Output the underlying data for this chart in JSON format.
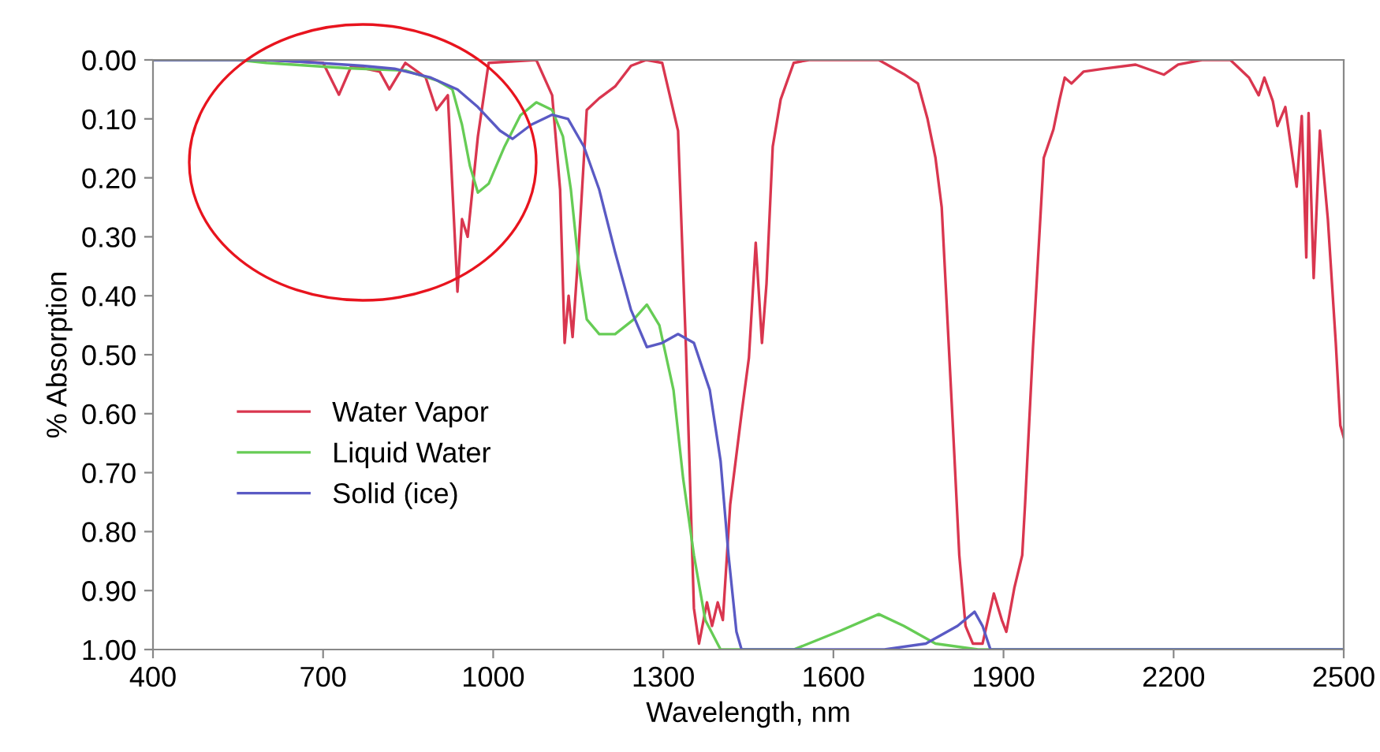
{
  "chart_data": {
    "type": "line",
    "xlabel": "Wavelength, nm",
    "ylabel": "% Absorption",
    "xlim": [
      400,
      2500
    ],
    "ylim": [
      1.0,
      0.0
    ],
    "xticks": [
      400,
      700,
      1000,
      1300,
      1600,
      1900,
      2200,
      2500
    ],
    "yticks": [
      {
        "value": 0,
        "label": "0.00"
      },
      {
        "value": 0.1,
        "label": "0.10"
      },
      {
        "value": 0.2,
        "label": "0.20"
      },
      {
        "value": 0.3,
        "label": "0.30"
      },
      {
        "value": 0.4,
        "label": "0.40"
      },
      {
        "value": 0.5,
        "label": "0.50"
      },
      {
        "value": 0.6,
        "label": "0.60"
      },
      {
        "value": 0.7,
        "label": "0.70"
      },
      {
        "value": 0.8,
        "label": "0.80"
      },
      {
        "value": 0.9,
        "label": "0.90"
      },
      {
        "value": 1.0,
        "label": "1.00"
      }
    ],
    "grid": false,
    "legend": "left",
    "marker": "none",
    "line_style": "solid",
    "series": [
      {
        "name": "Water Vapor",
        "color": "#d9364f",
        "x": [
          400,
          600,
          700,
          728,
          750,
          800,
          817,
          845,
          881,
          900,
          920,
          937,
          945,
          955,
          973,
          992,
          1076,
          1104,
          1118,
          1126,
          1133,
          1140,
          1150,
          1165,
          1187,
          1215,
          1243,
          1270,
          1298,
          1326,
          1340,
          1354,
          1363,
          1377,
          1386,
          1396,
          1405,
          1418,
          1438,
          1451,
          1463,
          1474,
          1482,
          1493,
          1507,
          1530,
          1557,
          1680,
          1724,
          1749,
          1766,
          1780,
          1791,
          1799,
          1813,
          1822,
          1833,
          1846,
          1863,
          1883,
          1897,
          1905,
          1919,
          1933,
          1938,
          1952,
          1971,
          1988,
          1999,
          2008,
          2020,
          2041,
          2077,
          2133,
          2183,
          2208,
          2250,
          2300,
          2333,
          2350,
          2360,
          2375,
          2383,
          2397,
          2417,
          2426,
          2434,
          2438,
          2447,
          2458,
          2472,
          2486,
          2494,
          2500
        ],
        "values": [
          0,
          0,
          0.005,
          0.059,
          0.01,
          0.02,
          0.05,
          0.005,
          0.03,
          0.085,
          0.06,
          0.393,
          0.27,
          0.3,
          0.13,
          0.005,
          0,
          0.06,
          0.22,
          0.48,
          0.4,
          0.47,
          0.33,
          0.085,
          0.065,
          0.045,
          0.01,
          0,
          0.005,
          0.12,
          0.49,
          0.93,
          0.99,
          0.92,
          0.96,
          0.92,
          0.95,
          0.754,
          0.6,
          0.505,
          0.31,
          0.48,
          0.38,
          0.147,
          0.067,
          0.005,
          0,
          0,
          0.024,
          0.04,
          0.1,
          0.166,
          0.25,
          0.4,
          0.665,
          0.84,
          0.96,
          0.99,
          0.99,
          0.905,
          0.95,
          0.97,
          0.896,
          0.84,
          0.754,
          0.487,
          0.166,
          0.118,
          0.067,
          0.03,
          0.04,
          0.02,
          0.015,
          0.008,
          0.025,
          0.008,
          0,
          0,
          0.03,
          0.06,
          0.03,
          0.07,
          0.112,
          0.08,
          0.215,
          0.095,
          0.335,
          0.09,
          0.37,
          0.12,
          0.27,
          0.48,
          0.62,
          0.64
        ]
      },
      {
        "name": "Liquid Water",
        "color": "#66cc55",
        "x": [
          400,
          550,
          600,
          742,
          845,
          901,
          928,
          945,
          959,
          973,
          992,
          1020,
          1048,
          1076,
          1104,
          1123,
          1137,
          1151,
          1165,
          1187,
          1215,
          1248,
          1271,
          1293,
          1318,
          1335,
          1354,
          1374,
          1401,
          1530,
          1613,
          1680,
          1724,
          1780,
          1855,
          2500
        ],
        "values": [
          0,
          0,
          0.005,
          0.014,
          0.018,
          0.035,
          0.05,
          0.11,
          0.18,
          0.225,
          0.21,
          0.147,
          0.094,
          0.072,
          0.085,
          0.13,
          0.22,
          0.35,
          0.44,
          0.465,
          0.465,
          0.44,
          0.415,
          0.45,
          0.56,
          0.71,
          0.84,
          0.95,
          1.0,
          1.0,
          0.968,
          0.94,
          0.96,
          0.99,
          1.0,
          1.0
        ]
      },
      {
        "name": "Solid (ice)",
        "color": "#5a5ac4",
        "x": [
          400,
          600,
          659,
          770,
          826,
          890,
          937,
          973,
          1012,
          1034,
          1067,
          1104,
          1132,
          1160,
          1187,
          1215,
          1243,
          1271,
          1298,
          1326,
          1354,
          1382,
          1401,
          1415,
          1429,
          1438,
          1690,
          1763,
          1819,
          1849,
          1863,
          1877,
          2500
        ],
        "values": [
          0,
          0,
          0.003,
          0.01,
          0.015,
          0.03,
          0.05,
          0.08,
          0.12,
          0.134,
          0.11,
          0.093,
          0.1,
          0.147,
          0.22,
          0.326,
          0.424,
          0.487,
          0.48,
          0.465,
          0.48,
          0.56,
          0.68,
          0.84,
          0.97,
          1.0,
          1.0,
          0.99,
          0.96,
          0.936,
          0.96,
          1.0,
          1.0
        ]
      }
    ]
  }
}
